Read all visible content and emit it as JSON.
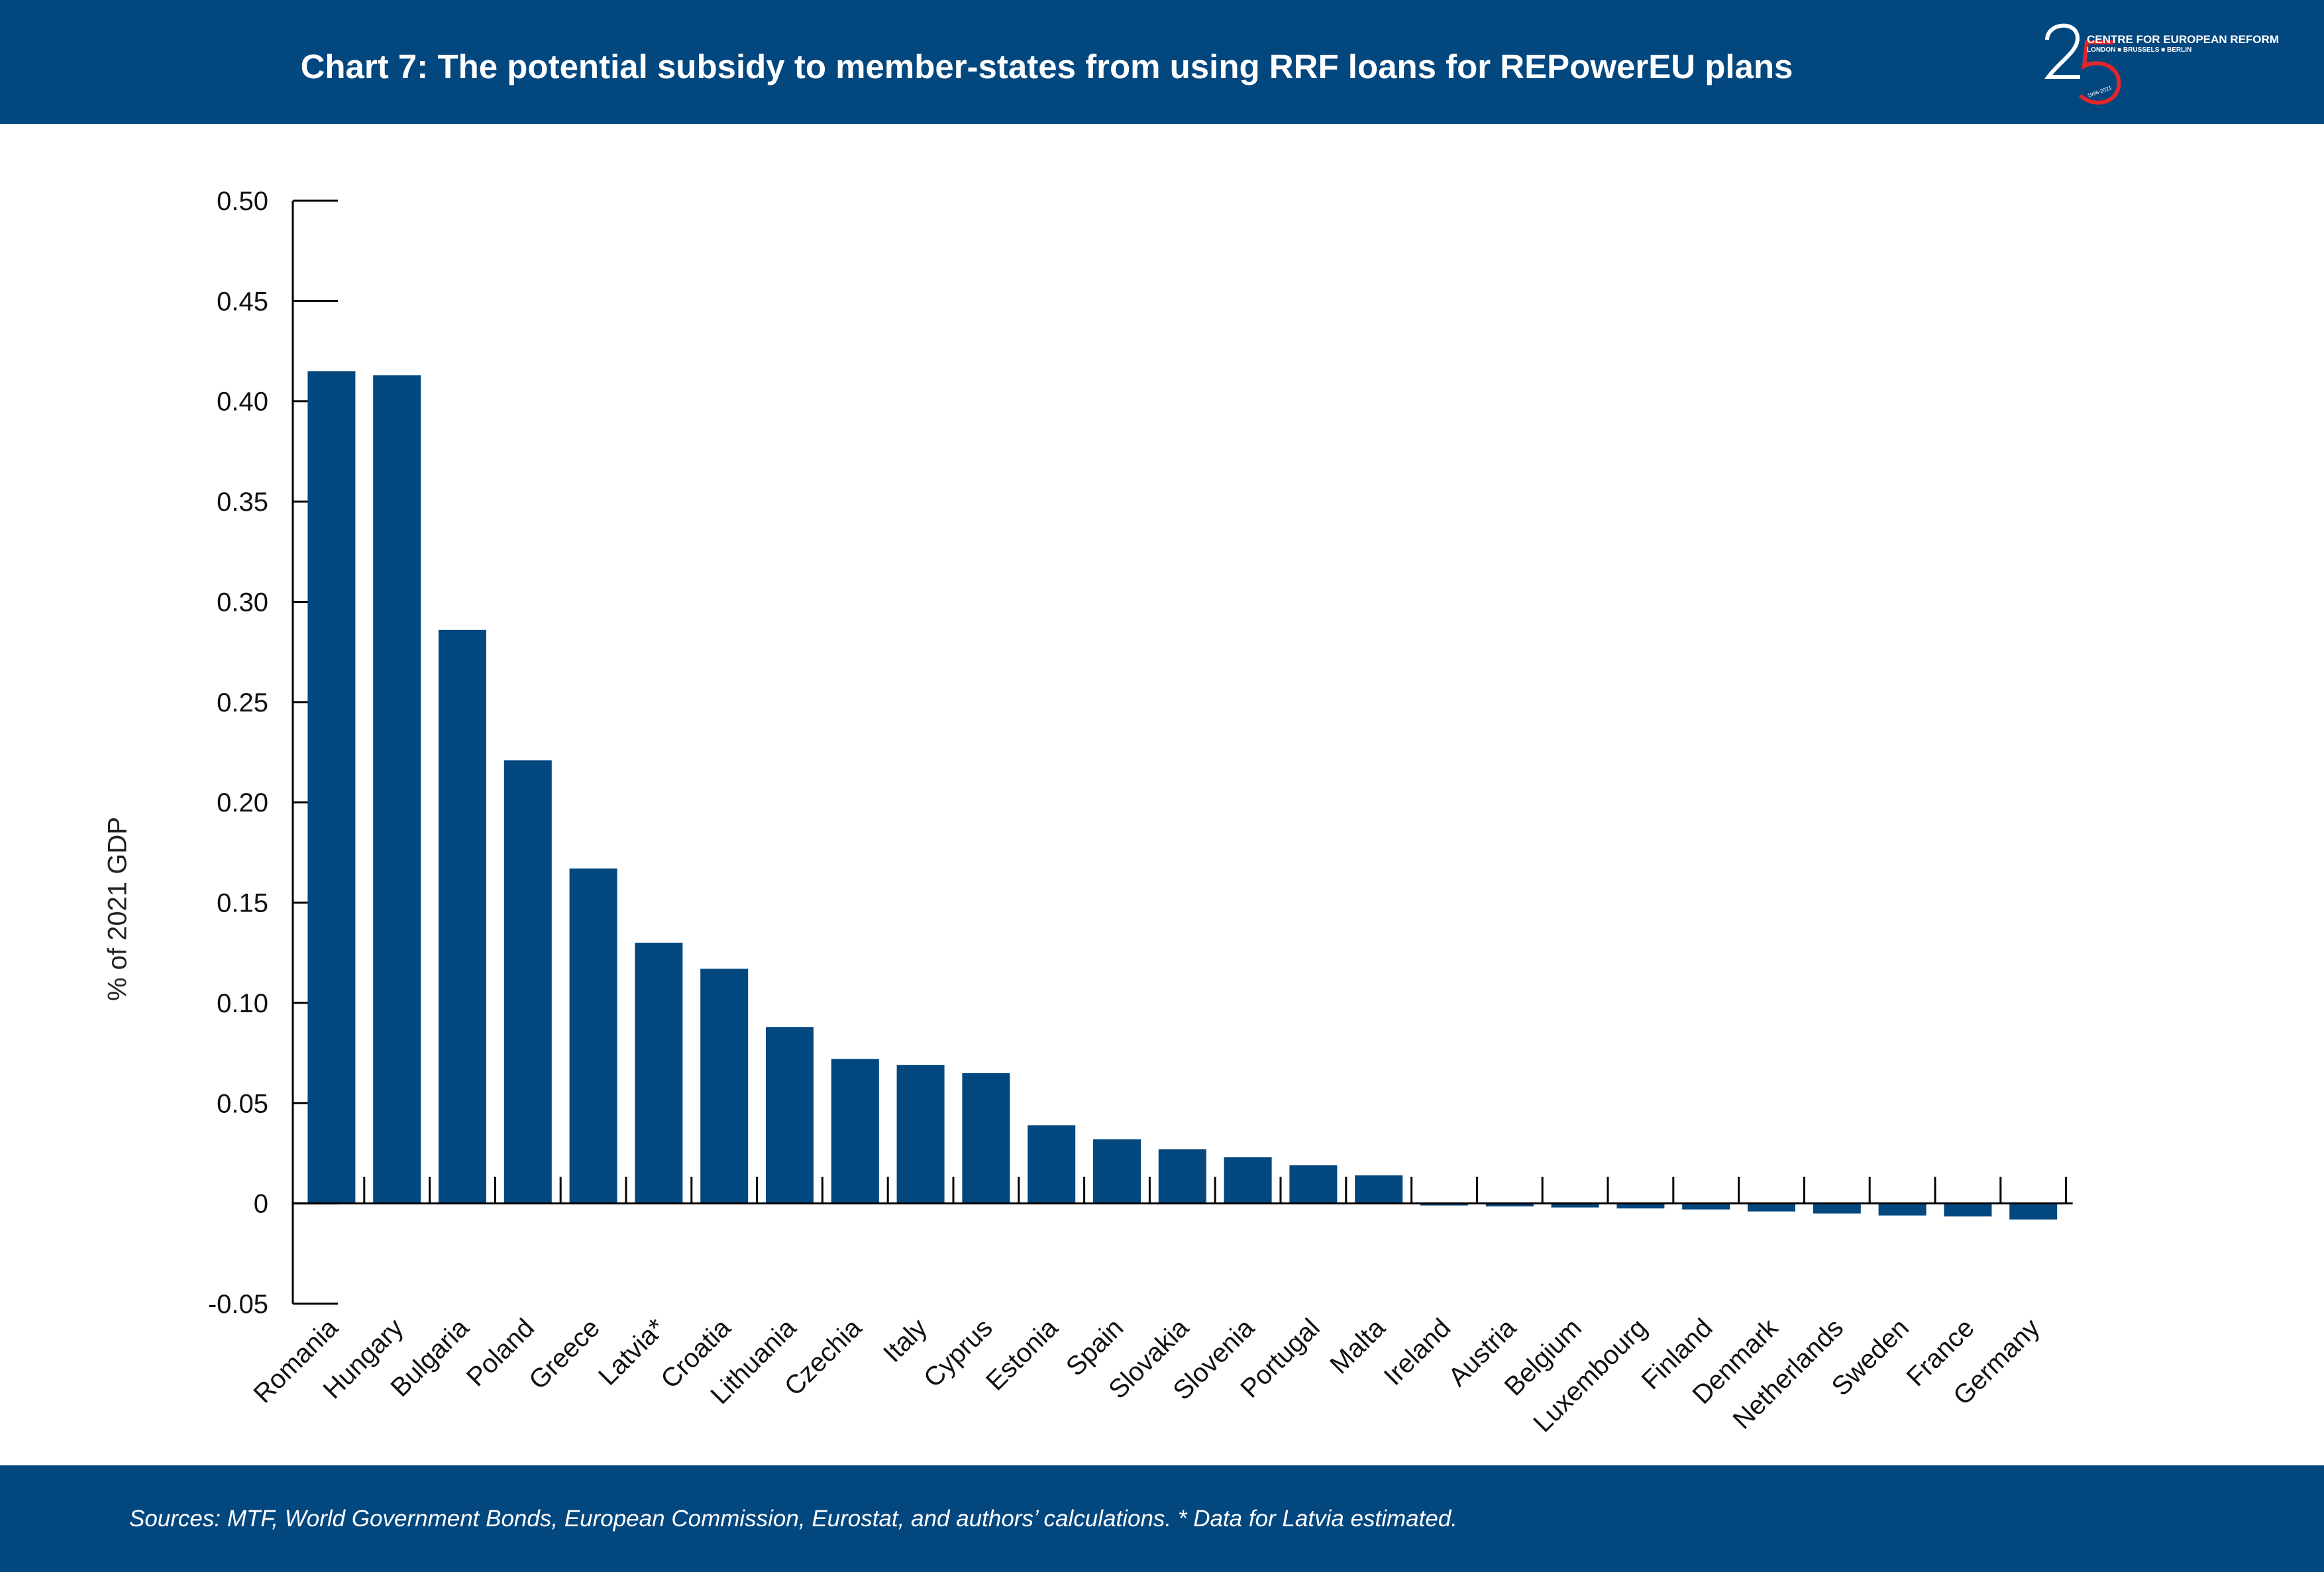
{
  "header": {
    "title": "Chart 7: The potential subsidy to member-states from using RRF loans for REPowerEU plans"
  },
  "logo": {
    "number": "25",
    "org_name": "CENTRE FOR EUROPEAN REFORM",
    "cities": "LONDON ■ BRUSSELS ■ BERLIN",
    "years": "1996-2021"
  },
  "footer": {
    "source": "Sources: MTF, World Government Bonds, European Commission, Eurostat, and authors’ calculations. * Data for Latvia estimated."
  },
  "colors": {
    "brand": "#03477f",
    "bar": "#03477f",
    "logo_accent": "#e3262b"
  },
  "chart_data": {
    "type": "bar",
    "ylabel": "% of 2021 GDP",
    "xlabel": "",
    "ylim": [
      -0.05,
      0.5
    ],
    "yticks": [
      0.5,
      0.45,
      0.4,
      0.35,
      0.3,
      0.25,
      0.2,
      0.15,
      0.1,
      0.05,
      0,
      -0.05
    ],
    "ytick_labels": [
      "0.50",
      "0.45",
      "0.40",
      "0.35",
      "0.30",
      "0.25",
      "0.20",
      "0.15",
      "0.10",
      "0.05",
      "0",
      "-0.05"
    ],
    "grid": false,
    "categories": [
      "Romania",
      "Hungary",
      "Bulgaria",
      "Poland",
      "Greece",
      "Latvia*",
      "Croatia",
      "Lithuania",
      "Czechia",
      "Italy",
      "Cyprus",
      "Estonia",
      "Spain",
      "Slovakia",
      "Slovenia",
      "Portugal",
      "Malta",
      "Ireland",
      "Austria",
      "Belgium",
      "Luxembourg",
      "Finland",
      "Denmark",
      "Netherlands",
      "Sweden",
      "France",
      "Germany"
    ],
    "values": [
      0.415,
      0.413,
      0.286,
      0.221,
      0.167,
      0.13,
      0.117,
      0.088,
      0.072,
      0.069,
      0.065,
      0.039,
      0.032,
      0.027,
      0.023,
      0.019,
      0.014,
      -0.001,
      -0.0015,
      -0.002,
      -0.0025,
      -0.003,
      -0.004,
      -0.005,
      -0.006,
      -0.0065,
      -0.008
    ]
  }
}
